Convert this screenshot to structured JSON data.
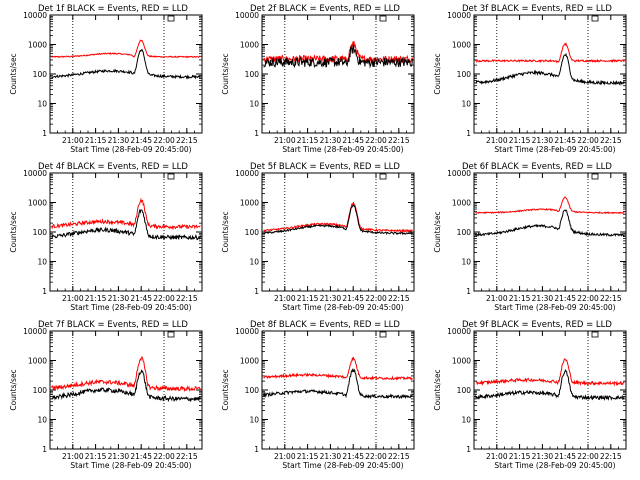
{
  "chart_data": {
    "type": "line",
    "shared": {
      "xlabel": "Start Time (28-Feb-09 20:45:00)",
      "ylabel": "Counts/sec",
      "y_scale": "log",
      "ylim": [
        1,
        10000
      ],
      "yticks": [
        "1",
        "10",
        "100",
        "1000",
        "10000"
      ],
      "xlim": [
        "20:45",
        "22:25"
      ],
      "xticks": [
        "21:00",
        "21:15",
        "21:30",
        "21:45",
        "22:00",
        "22:15"
      ],
      "vlines": [
        "21:00",
        "22:00"
      ],
      "series_colors": {
        "black": "#000000",
        "red": "#ff0000"
      }
    },
    "panels": [
      {
        "title": "Det 1f BLACK = Events, RED = LLD",
        "red": {
          "base": 380,
          "bumps": [
            {
              "t": "21:25",
              "a": 1.3,
              "w": 18
            }
          ],
          "peak": 1400,
          "noise": 0.02
        },
        "black": {
          "base": 80,
          "bumps": [
            {
              "t": "21:25",
              "a": 1.6,
              "w": 22
            }
          ],
          "peak": 650,
          "noise": 0.04
        }
      },
      {
        "title": "Det 2f BLACK = Events, RED = LLD",
        "red": {
          "base": 320,
          "bumps": [],
          "peak": 1050,
          "noise": 0.12
        },
        "black": {
          "base": 250,
          "bumps": [],
          "peak": 700,
          "noise": 0.16
        }
      },
      {
        "title": "Det 3f BLACK = Events, RED = LLD",
        "red": {
          "base": 280,
          "bumps": [],
          "peak": 1050,
          "noise": 0.03
        },
        "black": {
          "base": 50,
          "bumps": [
            {
              "t": "21:25",
              "a": 2.2,
              "w": 20
            }
          ],
          "peak": 450,
          "noise": 0.05
        }
      },
      {
        "title": "Det 4f BLACK = Events, RED = LLD",
        "red": {
          "base": 150,
          "bumps": [
            {
              "t": "21:20",
              "a": 1.5,
              "w": 22
            }
          ],
          "peak": 1200,
          "noise": 0.06
        },
        "black": {
          "base": 65,
          "bumps": [
            {
              "t": "21:20",
              "a": 1.8,
              "w": 22
            }
          ],
          "peak": 550,
          "noise": 0.07
        }
      },
      {
        "title": "Det 5f BLACK = Events, RED = LLD",
        "red": {
          "base": 110,
          "bumps": [
            {
              "t": "21:25",
              "a": 1.7,
              "w": 22
            }
          ],
          "peak": 950,
          "noise": 0.03
        },
        "black": {
          "base": 90,
          "bumps": [
            {
              "t": "21:25",
              "a": 1.8,
              "w": 22
            }
          ],
          "peak": 800,
          "noise": 0.03
        }
      },
      {
        "title": "Det 6f BLACK = Events, RED = LLD",
        "red": {
          "base": 450,
          "bumps": [
            {
              "t": "21:30",
              "a": 1.3,
              "w": 18
            }
          ],
          "peak": 1500,
          "noise": 0.02
        },
        "black": {
          "base": 80,
          "bumps": [
            {
              "t": "21:28",
              "a": 2.0,
              "w": 20
            }
          ],
          "peak": 550,
          "noise": 0.04
        }
      },
      {
        "title": "Det 7f BLACK = Events, RED = LLD",
        "red": {
          "base": 110,
          "bumps": [
            {
              "t": "21:20",
              "a": 1.7,
              "w": 22
            }
          ],
          "peak": 1200,
          "noise": 0.07
        },
        "black": {
          "base": 50,
          "bumps": [
            {
              "t": "21:20",
              "a": 2.0,
              "w": 22
            }
          ],
          "peak": 450,
          "noise": 0.07
        }
      },
      {
        "title": "Det 8f BLACK = Events, RED = LLD",
        "red": {
          "base": 250,
          "bumps": [
            {
              "t": "21:15",
              "a": 1.3,
              "w": 25
            }
          ],
          "peak": 1150,
          "noise": 0.04
        },
        "black": {
          "base": 60,
          "bumps": [
            {
              "t": "21:15",
              "a": 1.5,
              "w": 25
            }
          ],
          "peak": 480,
          "noise": 0.05
        }
      },
      {
        "title": "Det 9f BLACK = Events, RED = LLD",
        "red": {
          "base": 170,
          "bumps": [
            {
              "t": "21:20",
              "a": 1.3,
              "w": 22
            }
          ],
          "peak": 1100,
          "noise": 0.05
        },
        "black": {
          "base": 55,
          "bumps": [
            {
              "t": "21:20",
              "a": 1.5,
              "w": 22
            }
          ],
          "peak": 430,
          "noise": 0.06
        }
      }
    ]
  }
}
